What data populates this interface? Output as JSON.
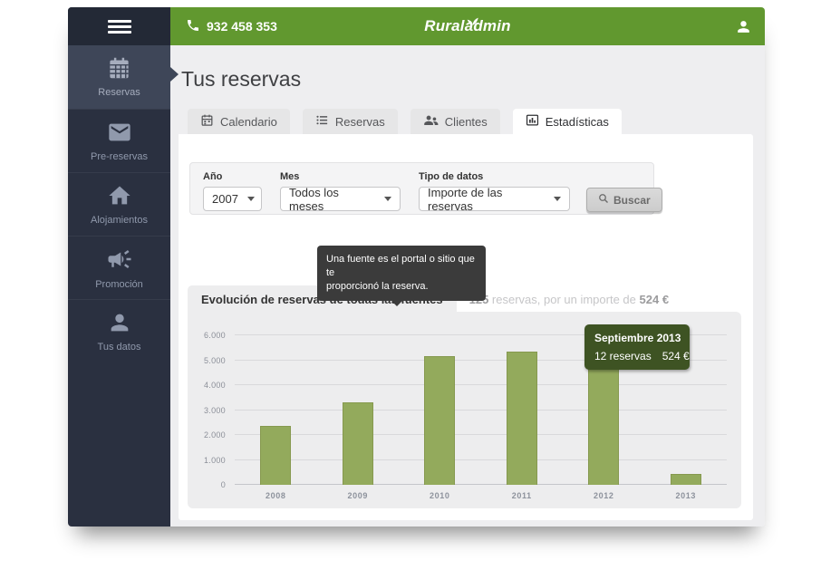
{
  "topbar": {
    "phone": "932 458 353",
    "brand": "Ruraladmin"
  },
  "sidebar": {
    "items": [
      {
        "label": "Reservas",
        "icon": "calendar-icon",
        "active": true
      },
      {
        "label": "Pre-reservas",
        "icon": "mail-icon",
        "active": false
      },
      {
        "label": "Alojamientos",
        "icon": "home-icon",
        "active": false
      },
      {
        "label": "Promoción",
        "icon": "megaphone-icon",
        "active": false
      },
      {
        "label": "Tus datos",
        "icon": "user-icon",
        "active": false
      }
    ]
  },
  "page": {
    "title": "Tus reservas"
  },
  "tabs": [
    {
      "label": "Calendario",
      "icon": "calendar-icon",
      "active": false
    },
    {
      "label": "Reservas",
      "icon": "list-icon",
      "active": false
    },
    {
      "label": "Clientes",
      "icon": "users-icon",
      "active": false
    },
    {
      "label": "Estadísticas",
      "icon": "bar-chart-icon",
      "active": true
    }
  ],
  "filters": {
    "year": {
      "label": "Año",
      "value": "2007"
    },
    "month": {
      "label": "Mes",
      "value": "Todos los meses"
    },
    "data_type": {
      "label": "Tipo de datos",
      "value": "Importe de las reservas"
    },
    "search_button": "Buscar"
  },
  "help_tooltip": {
    "line1": "Una fuente es el portal o sitio que te",
    "line2": "proporcionó la reserva."
  },
  "chart_header": {
    "title": "Evolución de reservas de todas las fuentes",
    "count": "125",
    "text": " reservas, por un importe de ",
    "amount": "524 €"
  },
  "chart_data": {
    "type": "bar",
    "title": "Evolución de reservas de todas las fuentes",
    "categories": [
      "2008",
      "2009",
      "2010",
      "2011",
      "2012",
      "2013"
    ],
    "values": [
      2350,
      3300,
      5150,
      5350,
      5700,
      450
    ],
    "xlabel": "",
    "ylabel": "",
    "ylim": [
      0,
      6000
    ],
    "grid": true,
    "legend": "none",
    "bar_color": "#93aa5c",
    "yticks": [
      {
        "label": "0",
        "value": 0
      },
      {
        "label": "1.000",
        "value": 1000
      },
      {
        "label": "2.000",
        "value": 2000
      },
      {
        "label": "3.000",
        "value": 3000
      },
      {
        "label": "4.000",
        "value": 4000
      },
      {
        "label": "5.000",
        "value": 5000
      },
      {
        "label": "6.000",
        "value": 6000
      }
    ],
    "tooltip": {
      "title": "Septiembre 2013",
      "reservas": "12 reservas",
      "amount": "524 €"
    }
  },
  "colors": {
    "accent_green": "#61982f",
    "sidebar_navy": "#2a3040",
    "sidebar_active": "#3e4658",
    "bar_green": "#93aa5c",
    "tooltip_green": "#3e5323",
    "tooltip_gray": "#3b3b3b"
  }
}
